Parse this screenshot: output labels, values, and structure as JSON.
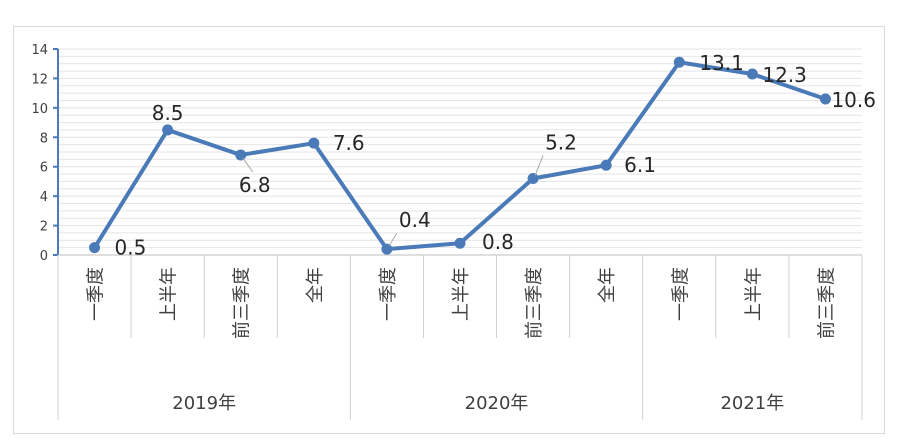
{
  "chart_data": {
    "type": "line",
    "title": "",
    "xlabel": "",
    "ylabel": "",
    "ylim": [
      0,
      14
    ],
    "yticks": [
      0,
      2,
      4,
      6,
      8,
      10,
      12,
      14
    ],
    "grid": true,
    "legend": "none",
    "line_color": "#4a7ab8",
    "categories": [
      "一季度",
      "上半年",
      "前三季度",
      "全年",
      "一季度",
      "上半年",
      "前三季度",
      "全年",
      "一季度",
      "上半年",
      "前三季度"
    ],
    "groups": [
      {
        "label": "2019年",
        "count": 4
      },
      {
        "label": "2020年",
        "count": 4
      },
      {
        "label": "2021年",
        "count": 3
      }
    ],
    "series": [
      {
        "values": [
          0.5,
          8.5,
          6.8,
          7.6,
          0.4,
          0.8,
          5.2,
          6.1,
          13.1,
          12.3,
          10.6
        ],
        "labels": [
          "0.5",
          "8.5",
          "6.8",
          "7.6",
          "0.4",
          "0.8",
          "5.2",
          "6.1",
          "13.1",
          "12.3",
          "10.6"
        ]
      }
    ]
  }
}
